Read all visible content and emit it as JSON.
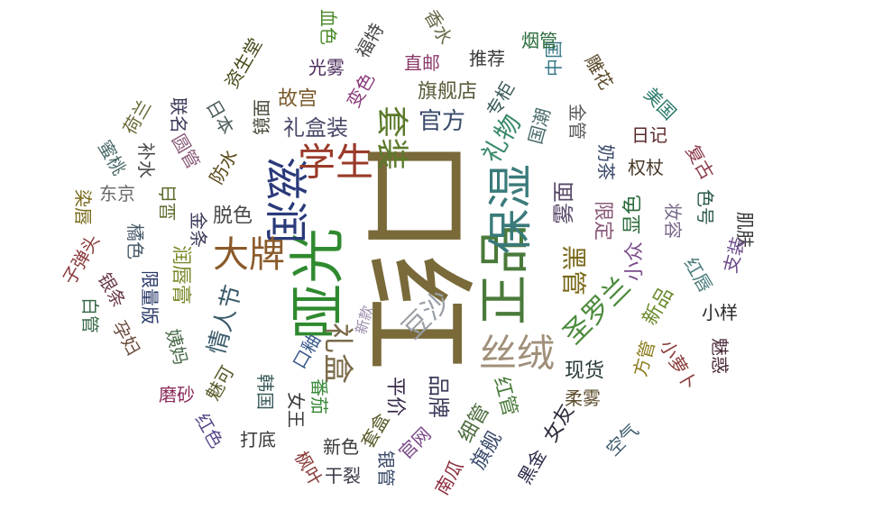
{
  "chart_data": {
    "type": "wordcloud",
    "title": "",
    "words": [
      {
        "text": "口红",
        "weight": 100,
        "color": "#7a6a3a",
        "rotation": 90
      },
      {
        "text": "哑光",
        "weight": 62,
        "color": "#2f8a2f",
        "rotation": -90
      },
      {
        "text": "正品",
        "weight": 56,
        "color": "#4a7a3a",
        "rotation": -90
      },
      {
        "text": "保湿",
        "weight": 50,
        "color": "#3a7a7a",
        "rotation": -90
      },
      {
        "text": "滋润",
        "weight": 48,
        "color": "#2a3a7a",
        "rotation": 90
      },
      {
        "text": "学生",
        "weight": 42,
        "color": "#9a3a2a",
        "rotation": 0
      },
      {
        "text": "丝绒",
        "weight": 42,
        "color": "#a0907a",
        "rotation": 0
      },
      {
        "text": "大牌",
        "weight": 40,
        "color": "#8a5a2a",
        "rotation": 0
      },
      {
        "text": "套装",
        "weight": 36,
        "color": "#5a7a2a",
        "rotation": 90
      },
      {
        "text": "礼盒",
        "weight": 34,
        "color": "#7a6a4a",
        "rotation": 90
      },
      {
        "text": "豆沙",
        "weight": 30,
        "color": "#9aa0a8",
        "rotation": -45
      },
      {
        "text": "圣罗兰",
        "weight": 30,
        "color": "#4a8a3a",
        "rotation": -45
      },
      {
        "text": "礼物",
        "weight": 28,
        "color": "#3a8a6a",
        "rotation": -60
      },
      {
        "text": "黑管",
        "weight": 28,
        "color": "#7a6a1a",
        "rotation": 90
      },
      {
        "text": "情人节",
        "weight": 26,
        "color": "#3a5a6a",
        "rotation": -75
      },
      {
        "text": "官方",
        "weight": 26,
        "color": "#3a4a6a",
        "rotation": 0
      },
      {
        "text": "礼盒装",
        "weight": 24,
        "color": "#4a4a6a",
        "rotation": 0
      },
      {
        "text": "品牌",
        "weight": 24,
        "color": "#3a3a5a",
        "rotation": 90
      },
      {
        "text": "旗舰店",
        "weight": 22,
        "color": "#5a5a3a",
        "rotation": 0
      },
      {
        "text": "雾面",
        "weight": 24,
        "color": "#5a4a6a",
        "rotation": -90
      },
      {
        "text": "限定",
        "weight": 22,
        "color": "#8a5a7a",
        "rotation": 90
      },
      {
        "text": "脱色",
        "weight": 22,
        "color": "#4a4a4a",
        "rotation": 0
      },
      {
        "text": "故宫",
        "weight": 22,
        "color": "#7a5a2a",
        "rotation": 0
      },
      {
        "text": "变色",
        "weight": 20,
        "color": "#8a3a7a",
        "rotation": -60
      },
      {
        "text": "专柜",
        "weight": 20,
        "color": "#3a5a5a",
        "rotation": -60
      },
      {
        "text": "润唇膏",
        "weight": 22,
        "color": "#7a8a2a",
        "rotation": 90
      },
      {
        "text": "现货",
        "weight": 22,
        "color": "#2a3a3a",
        "rotation": 0
      },
      {
        "text": "平价",
        "weight": 22,
        "color": "#3a2a4a",
        "rotation": 90
      },
      {
        "text": "细管",
        "weight": 22,
        "color": "#4a6a3a",
        "rotation": -60
      },
      {
        "text": "红管",
        "weight": 22,
        "color": "#4a7a3a",
        "rotation": 75
      },
      {
        "text": "旗舰",
        "weight": 22,
        "color": "#3a4a6a",
        "rotation": -60
      },
      {
        "text": "女友",
        "weight": 22,
        "color": "#2a2a3a",
        "rotation": -60
      },
      {
        "text": "柔雾",
        "weight": 20,
        "color": "#5a4a2a",
        "rotation": 0
      },
      {
        "text": "方管",
        "weight": 20,
        "color": "#8a7a1a",
        "rotation": -75
      },
      {
        "text": "魅惑",
        "weight": 20,
        "color": "#4a2a3a",
        "rotation": 90
      },
      {
        "text": "小样",
        "weight": 20,
        "color": "#2a2a2a",
        "rotation": 0
      },
      {
        "text": "新品",
        "weight": 22,
        "color": "#6a8a2a",
        "rotation": -60
      },
      {
        "text": "小众",
        "weight": 22,
        "color": "#7a4a8a",
        "rotation": -90
      },
      {
        "text": "显色",
        "weight": 22,
        "color": "#2a6a3a",
        "rotation": -90
      },
      {
        "text": "权杖",
        "weight": 20,
        "color": "#4a3a2a",
        "rotation": 0
      },
      {
        "text": "日记",
        "weight": 20,
        "color": "#5a2a2a",
        "rotation": 0
      },
      {
        "text": "奶茶",
        "weight": 20,
        "color": "#3a4a6a",
        "rotation": 90
      },
      {
        "text": "金管",
        "weight": 20,
        "color": "#5a5a5a",
        "rotation": 90
      },
      {
        "text": "中国",
        "weight": 20,
        "color": "#3a7a8a",
        "rotation": -90
      },
      {
        "text": "国潮",
        "weight": 20,
        "color": "#4a6a6a",
        "rotation": -75
      },
      {
        "text": "烟管",
        "weight": 20,
        "color": "#2a6a3a",
        "rotation": 0
      },
      {
        "text": "雕花",
        "weight": 20,
        "color": "#5a4a2a",
        "rotation": 60
      },
      {
        "text": "美国",
        "weight": 20,
        "color": "#2a7a6a",
        "rotation": 45
      },
      {
        "text": "复古",
        "weight": 20,
        "color": "#8a3a4a",
        "rotation": 60
      },
      {
        "text": "色号",
        "weight": 20,
        "color": "#2a5a4a",
        "rotation": 90
      },
      {
        "text": "妆容",
        "weight": 20,
        "color": "#7a6a8a",
        "rotation": 90
      },
      {
        "text": "肌肤",
        "weight": 20,
        "color": "#3a3a3a",
        "rotation": 90
      },
      {
        "text": "红唇",
        "weight": 20,
        "color": "#4a7a7a",
        "rotation": 60
      },
      {
        "text": "支装",
        "weight": 20,
        "color": "#6a4a8a",
        "rotation": -75
      },
      {
        "text": "小萝卜",
        "weight": 20,
        "color": "#8a3a3a",
        "rotation": 60
      },
      {
        "text": "空气",
        "weight": 20,
        "color": "#3a5a6a",
        "rotation": -45
      },
      {
        "text": "黑金",
        "weight": 20,
        "color": "#2a2a4a",
        "rotation": -60
      },
      {
        "text": "南瓜",
        "weight": 20,
        "color": "#8a2a3a",
        "rotation": -60
      },
      {
        "text": "官网",
        "weight": 20,
        "color": "#7a4a8a",
        "rotation": -45
      },
      {
        "text": "银管",
        "weight": 20,
        "color": "#3a4a6a",
        "rotation": 90
      },
      {
        "text": "套盒",
        "weight": 20,
        "color": "#5a5a2a",
        "rotation": -60
      },
      {
        "text": "新色",
        "weight": 20,
        "color": "#3a3a3a",
        "rotation": 0
      },
      {
        "text": "干裂",
        "weight": 20,
        "color": "#3a3a4a",
        "rotation": 0
      },
      {
        "text": "枫叶",
        "weight": 20,
        "color": "#8a3a3a",
        "rotation": 60
      },
      {
        "text": "番茄",
        "weight": 20,
        "color": "#3a8a3a",
        "rotation": 90
      },
      {
        "text": "女王",
        "weight": 20,
        "color": "#3a3a3a",
        "rotation": 90
      },
      {
        "text": "韩国",
        "weight": 20,
        "color": "#3a5a5a",
        "rotation": 90
      },
      {
        "text": "打底",
        "weight": 20,
        "color": "#3a3a3a",
        "rotation": 0
      },
      {
        "text": "口釉",
        "weight": 20,
        "color": "#3a5a8a",
        "rotation": -60
      },
      {
        "text": "魅可",
        "weight": 20,
        "color": "#5a5a2a",
        "rotation": -60
      },
      {
        "text": "红色",
        "weight": 20,
        "color": "#5a4a8a",
        "rotation": 60
      },
      {
        "text": "磨砂",
        "weight": 20,
        "color": "#8a2a5a",
        "rotation": 0
      },
      {
        "text": "姨妈",
        "weight": 20,
        "color": "#4a6a4a",
        "rotation": 75
      },
      {
        "text": "限量版",
        "weight": 20,
        "color": "#2a3a6a",
        "rotation": 90
      },
      {
        "text": "孕妇",
        "weight": 20,
        "color": "#6a4a3a",
        "rotation": 60
      },
      {
        "text": "白管",
        "weight": 20,
        "color": "#3a6a4a",
        "rotation": 90
      },
      {
        "text": "镜面",
        "weight": 20,
        "color": "#4a4a3a",
        "rotation": -90
      },
      {
        "text": "日本",
        "weight": 20,
        "color": "#4a5a5a",
        "rotation": 60
      },
      {
        "text": "资生堂",
        "weight": 20,
        "color": "#4a4a1a",
        "rotation": -60
      },
      {
        "text": "防水",
        "weight": 20,
        "color": "#5a4a1a",
        "rotation": -60
      },
      {
        "text": "显白",
        "weight": 20,
        "color": "#5a6a2a",
        "rotation": -90
      },
      {
        "text": "金条",
        "weight": 20,
        "color": "#3a3a5a",
        "rotation": 90
      },
      {
        "text": "橘色",
        "weight": 20,
        "color": "#4a5a6a",
        "rotation": 90
      },
      {
        "text": "银条",
        "weight": 20,
        "color": "#6a3a4a",
        "rotation": 60
      },
      {
        "text": "子弹头",
        "weight": 20,
        "color": "#8a3a3a",
        "rotation": -60
      },
      {
        "text": "染唇",
        "weight": 20,
        "color": "#7a6a1a",
        "rotation": 90
      },
      {
        "text": "东京",
        "weight": 20,
        "color": "#6a6a6a",
        "rotation": 0
      },
      {
        "text": "蜜桃",
        "weight": 20,
        "color": "#4a6a6a",
        "rotation": 60
      },
      {
        "text": "补水",
        "weight": 20,
        "color": "#4a4a4a",
        "rotation": 90
      },
      {
        "text": "圆管",
        "weight": 20,
        "color": "#8a5a7a",
        "rotation": 60
      },
      {
        "text": "荷兰",
        "weight": 20,
        "color": "#6a6a3a",
        "rotation": -60
      },
      {
        "text": "联名",
        "weight": 20,
        "color": "#3a3a5a",
        "rotation": 90
      },
      {
        "text": "光雾",
        "weight": 20,
        "color": "#4a2a5a",
        "rotation": 0
      },
      {
        "text": "血色",
        "weight": 20,
        "color": "#4a8a2a",
        "rotation": 90
      },
      {
        "text": "福特",
        "weight": 20,
        "color": "#4a4a4a",
        "rotation": -60
      },
      {
        "text": "直邮",
        "weight": 20,
        "color": "#8a3a6a",
        "rotation": 0
      },
      {
        "text": "推荐",
        "weight": 20,
        "color": "#3a3a3a",
        "rotation": 0
      },
      {
        "text": "香水",
        "weight": 20,
        "color": "#6a6a4a",
        "rotation": 60
      },
      {
        "text": "新款",
        "weight": 16,
        "color": "#9a8aa8",
        "rotation": -75
      }
    ]
  }
}
